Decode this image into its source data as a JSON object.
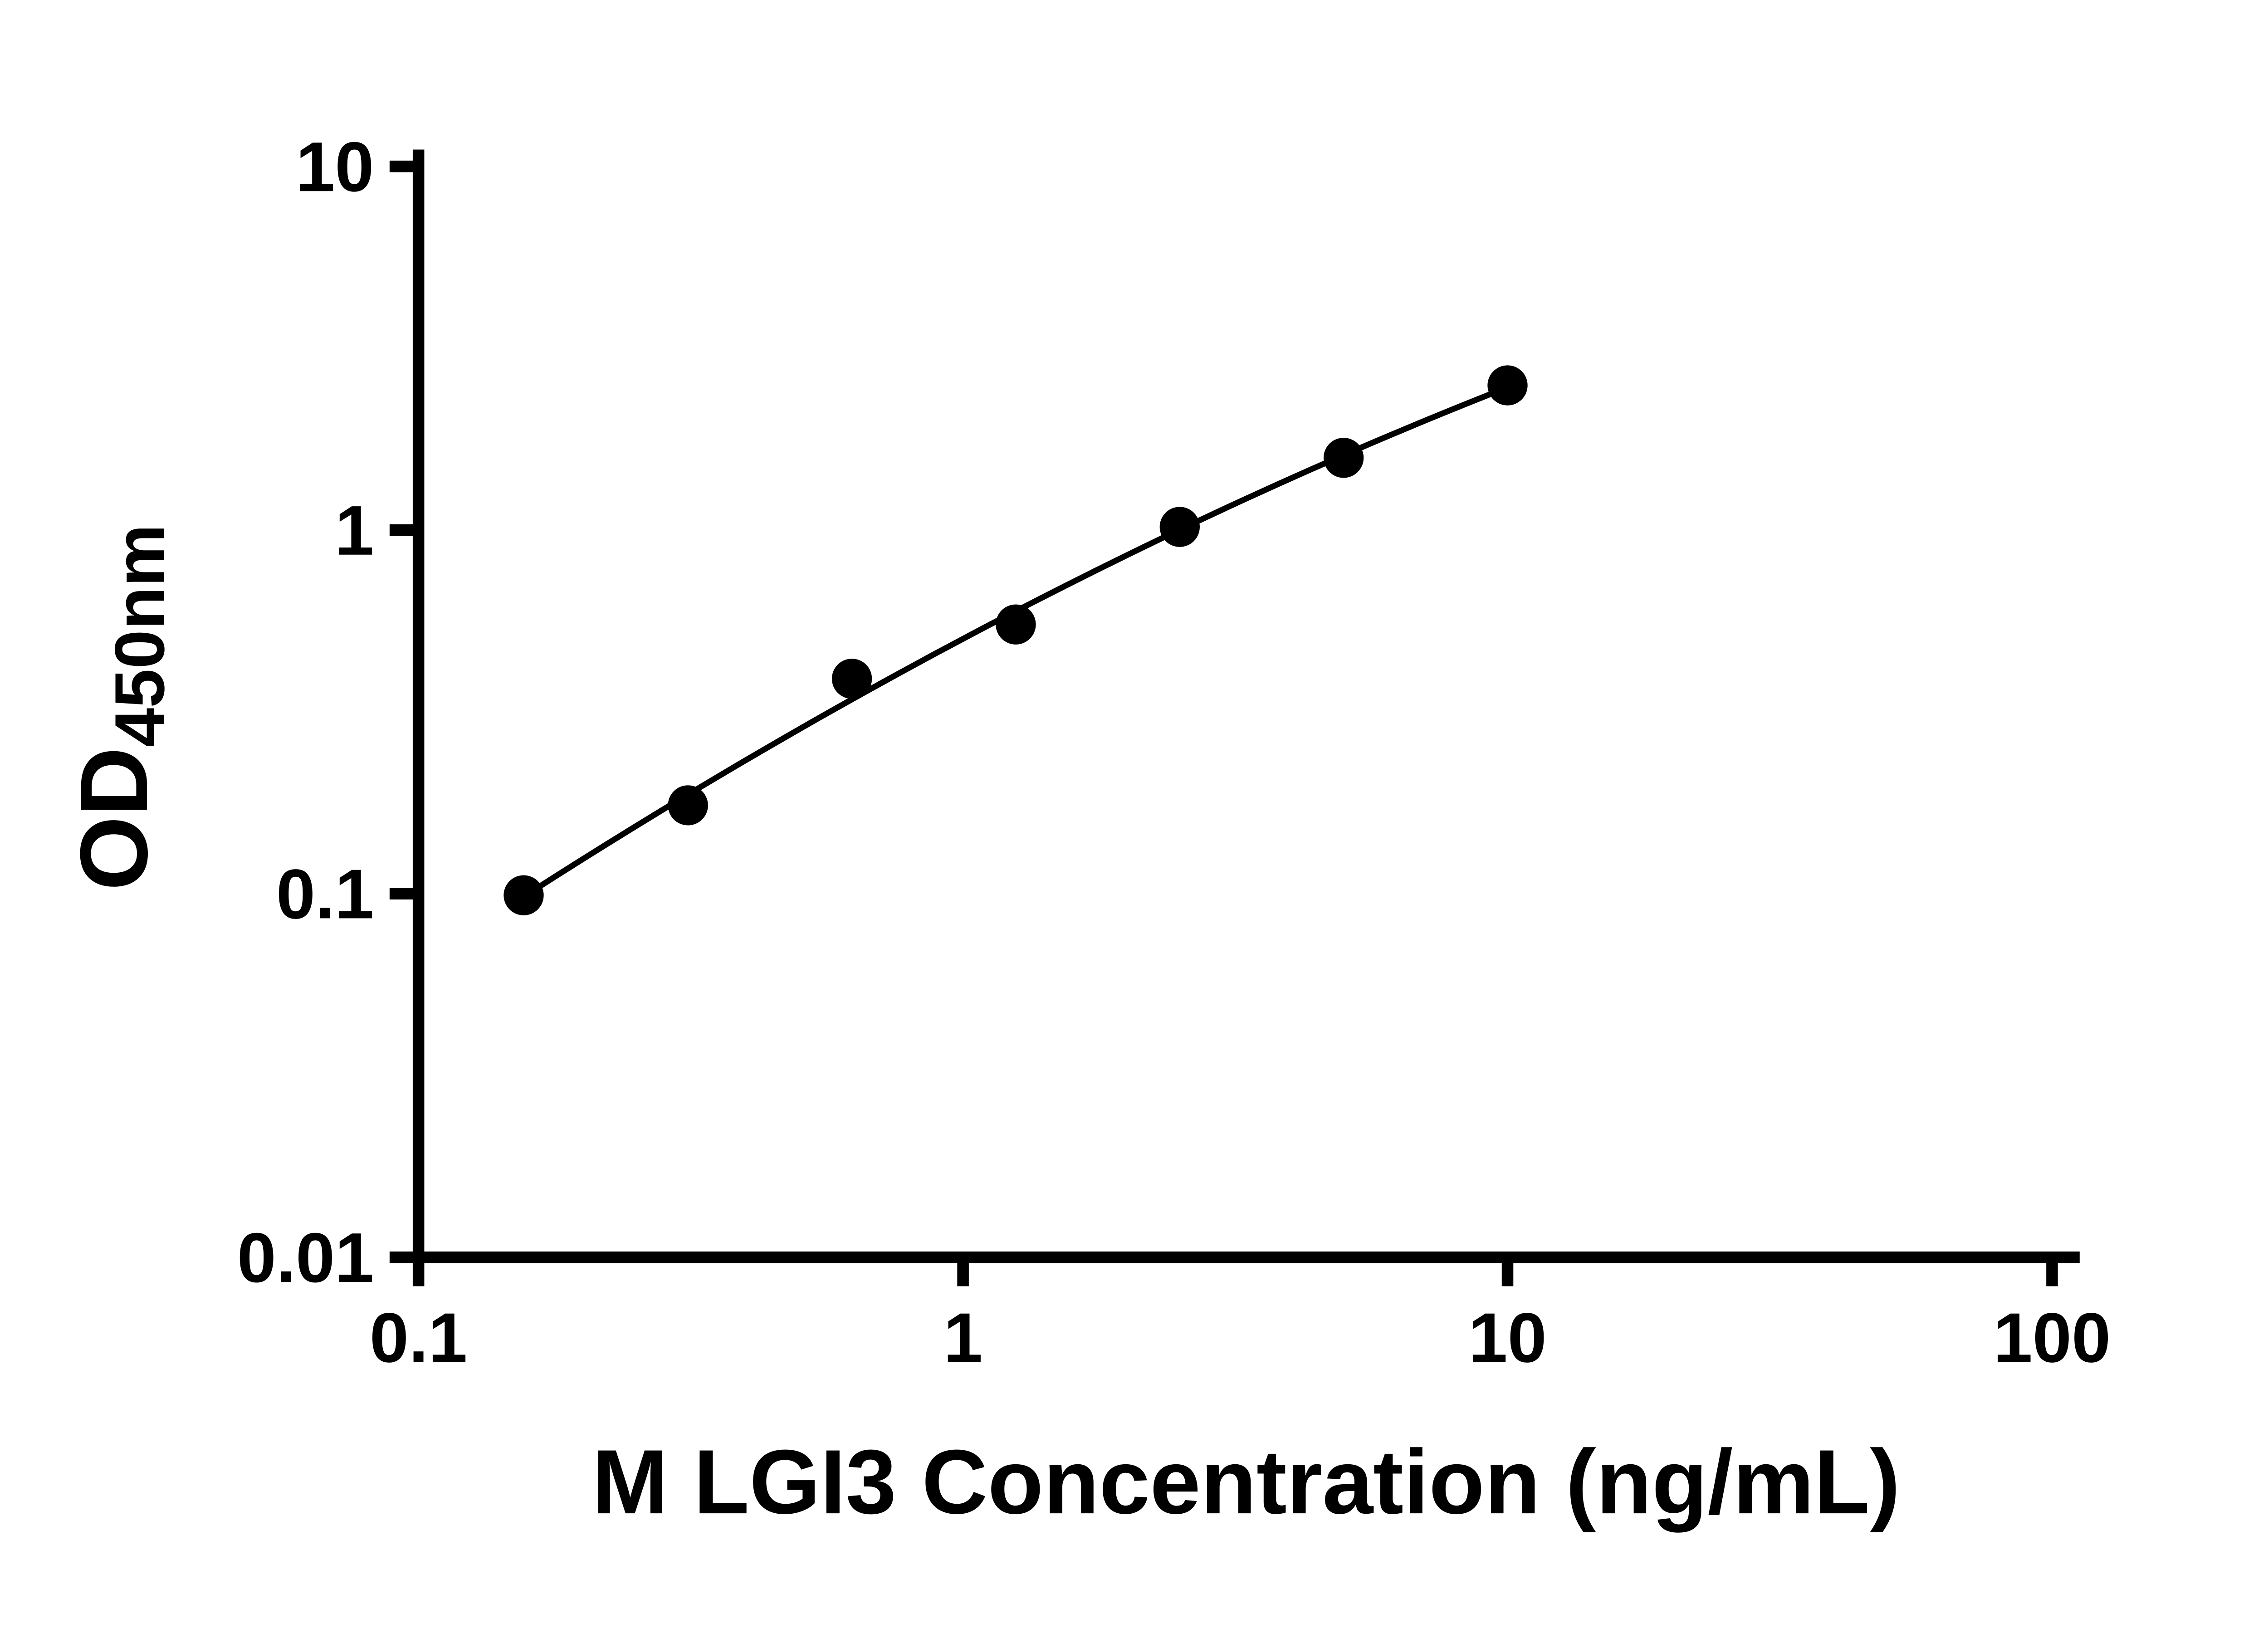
{
  "page": {
    "background_color": "#ffffff"
  },
  "chart_data": {
    "type": "scatter",
    "title": "",
    "xlabel": "M LGI3 Concentration (ng/mL)",
    "ylabel": {
      "main": "OD",
      "subscript": "450nm"
    },
    "x_scale": "log",
    "y_scale": "log",
    "xlim": [
      0.1,
      100
    ],
    "ylim": [
      0.01,
      10
    ],
    "grid": false,
    "legend": false,
    "axis_color": "#000000",
    "x_ticks": [
      {
        "value": 0.1,
        "label": "0.1"
      },
      {
        "value": 1,
        "label": "1"
      },
      {
        "value": 10,
        "label": "10"
      },
      {
        "value": 100,
        "label": "100"
      }
    ],
    "y_ticks": [
      {
        "value": 0.01,
        "label": "0.01"
      },
      {
        "value": 0.1,
        "label": "0.1"
      },
      {
        "value": 1,
        "label": "1"
      },
      {
        "value": 10,
        "label": "10"
      }
    ],
    "series": [
      {
        "marker": "circle",
        "marker_color": "#000000",
        "line_color": "#000000",
        "fit_line": true,
        "points": [
          {
            "x": 0.156,
            "y": 0.099
          },
          {
            "x": 0.3125,
            "y": 0.175
          },
          {
            "x": 0.625,
            "y": 0.39
          },
          {
            "x": 1.25,
            "y": 0.55
          },
          {
            "x": 2.5,
            "y": 1.02
          },
          {
            "x": 5,
            "y": 1.58
          },
          {
            "x": 10,
            "y": 2.5
          }
        ]
      }
    ]
  }
}
